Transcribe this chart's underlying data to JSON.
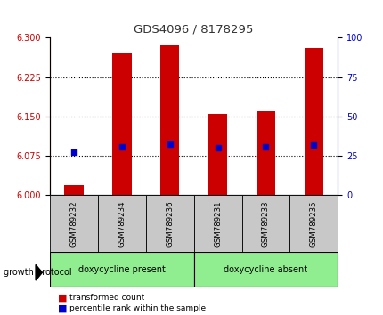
{
  "title": "GDS4096 / 8178295",
  "samples": [
    "GSM789232",
    "GSM789234",
    "GSM789236",
    "GSM789231",
    "GSM789233",
    "GSM789235"
  ],
  "red_bar_values": [
    6.02,
    6.27,
    6.285,
    6.155,
    6.16,
    6.28
  ],
  "blue_sq_values": [
    6.083,
    6.093,
    6.097,
    6.091,
    6.093,
    6.095
  ],
  "ylim_left": [
    6.0,
    6.3
  ],
  "ylim_right": [
    0,
    100
  ],
  "yticks_left": [
    6.0,
    6.075,
    6.15,
    6.225,
    6.3
  ],
  "yticks_right": [
    0,
    25,
    50,
    75,
    100
  ],
  "grid_values": [
    6.075,
    6.15,
    6.225
  ],
  "group1_label": "doxycycline present",
  "group2_label": "doxycycline absent",
  "protocol_label": "growth protocol",
  "group_color": "#90ee90",
  "bar_color": "#cc0000",
  "blue_color": "#0000cc",
  "bar_baseline": 6.0,
  "bar_width": 0.4,
  "left_tick_color": "#cc0000",
  "right_tick_color": "#0000cc",
  "legend_red_label": "transformed count",
  "legend_blue_label": "percentile rank within the sample",
  "bg_tick_area": "#c8c8c8"
}
